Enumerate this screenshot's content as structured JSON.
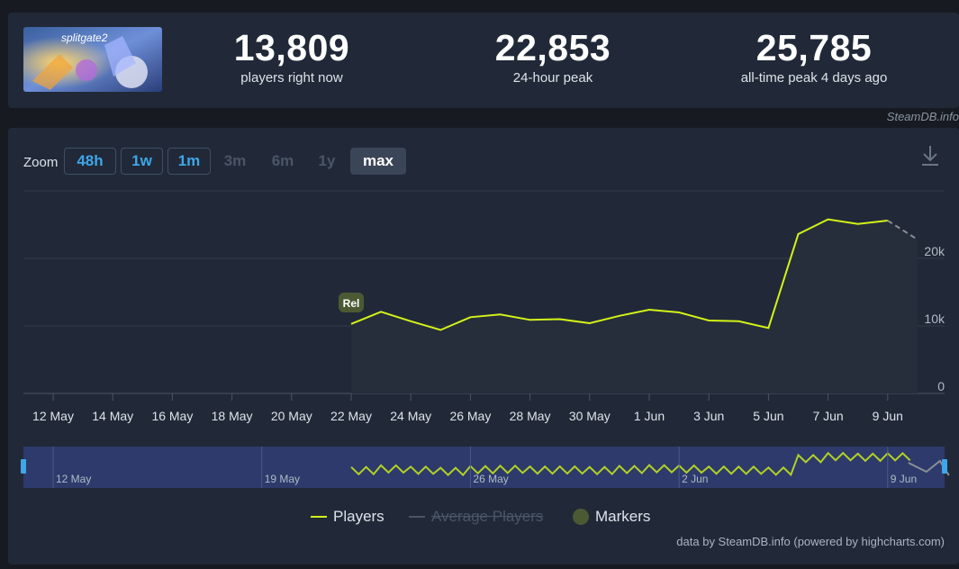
{
  "stats": [
    {
      "value": "13,809",
      "label": "players right now"
    },
    {
      "value": "22,853",
      "label": "24-hour peak"
    },
    {
      "value": "25,785",
      "label": "all-time peak 4 days ago"
    }
  ],
  "game": {
    "logo_text": "splitgate2"
  },
  "watermark": "SteamDB.info",
  "zoom": {
    "label": "Zoom",
    "options": [
      {
        "label": "48h",
        "state": "enabled"
      },
      {
        "label": "1w",
        "state": "enabled"
      },
      {
        "label": "1m",
        "state": "enabled"
      },
      {
        "label": "3m",
        "state": "disabled"
      },
      {
        "label": "6m",
        "state": "disabled"
      },
      {
        "label": "1y",
        "state": "disabled"
      },
      {
        "label": "max",
        "state": "active"
      }
    ]
  },
  "chart_data": {
    "type": "line",
    "x_labels": [
      "12 May",
      "14 May",
      "16 May",
      "18 May",
      "20 May",
      "22 May",
      "24 May",
      "26 May",
      "28 May",
      "30 May",
      "1 Jun",
      "3 Jun",
      "5 Jun",
      "7 Jun",
      "9 Jun"
    ],
    "y_ticks": [
      0,
      10000,
      20000
    ],
    "y_tick_labels": [
      "0",
      "10k",
      "20k"
    ],
    "ylim": [
      0,
      30000
    ],
    "grid": true,
    "series": [
      {
        "name": "Players",
        "color": "#d4f218",
        "points": [
          {
            "date": "22 May",
            "y": 10300
          },
          {
            "date": "23 May",
            "y": 12100
          },
          {
            "date": "24 May",
            "y": 10700
          },
          {
            "date": "25 May",
            "y": 9400
          },
          {
            "date": "26 May",
            "y": 11300
          },
          {
            "date": "27 May",
            "y": 11700
          },
          {
            "date": "28 May",
            "y": 10900
          },
          {
            "date": "29 May",
            "y": 11000
          },
          {
            "date": "30 May",
            "y": 10400
          },
          {
            "date": "31 May",
            "y": 11500
          },
          {
            "date": "1 Jun",
            "y": 12400
          },
          {
            "date": "2 Jun",
            "y": 12000
          },
          {
            "date": "3 Jun",
            "y": 10800
          },
          {
            "date": "4 Jun",
            "y": 10700
          },
          {
            "date": "5 Jun",
            "y": 9700
          },
          {
            "date": "6 Jun",
            "y": 23600
          },
          {
            "date": "7 Jun",
            "y": 25785
          },
          {
            "date": "8 Jun",
            "y": 25100
          },
          {
            "date": "9 Jun",
            "y": 25600
          }
        ],
        "incomplete_point": {
          "date": "10 Jun",
          "y": 22800
        }
      },
      {
        "name": "Average Players",
        "hidden": true
      }
    ],
    "markers": [
      {
        "date": "22 May",
        "label": "Rel"
      }
    ],
    "navigator": {
      "labels": [
        "12 May",
        "19 May",
        "26 May",
        "2 Jun",
        "9 Jun"
      ]
    },
    "legend": {
      "items": [
        "Players",
        "Average Players",
        "Markers"
      ],
      "placement": "bottom-center"
    }
  },
  "credits": "data by SteamDB.info (powered by highcharts.com)"
}
